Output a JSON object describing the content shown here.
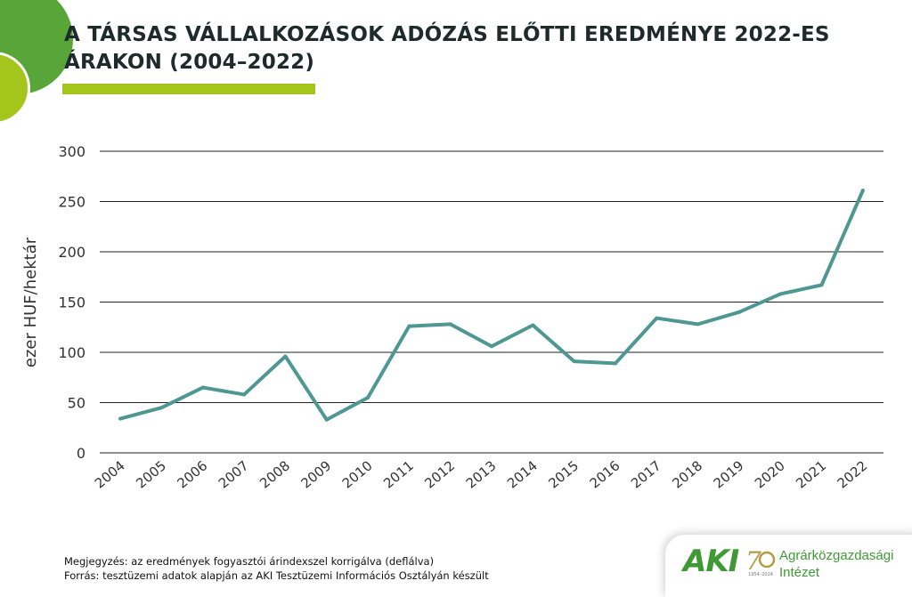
{
  "header": {
    "title_line1": "A TÁRSAS VÁLLALKOZÁSOK ADÓZÁS ELŐTTI EREDMÉNYE 2022-ES",
    "title_line2": "ÁRAKON (2004–2022)"
  },
  "chart_data": {
    "type": "line",
    "ylabel": "ezer HUF/hektár",
    "xlabel": "",
    "ylim": [
      0,
      300
    ],
    "yticks": [
      0,
      50,
      100,
      150,
      200,
      250,
      300
    ],
    "grid": true,
    "categories": [
      "2004",
      "2005",
      "2006",
      "2007",
      "2008",
      "2009",
      "2010",
      "2011",
      "2012",
      "2013",
      "2014",
      "2015",
      "2016",
      "2017",
      "2018",
      "2019",
      "2020",
      "2021",
      "2022"
    ],
    "series": [
      {
        "values": [
          34,
          45,
          65,
          58,
          96,
          33,
          55,
          126,
          128,
          106,
          127,
          91,
          89,
          134,
          128,
          140,
          158,
          167,
          261
        ],
        "color": "#4e9793"
      }
    ],
    "colors": {
      "grid": "#222222",
      "axis_text": "#333333"
    }
  },
  "footer": {
    "note": "Megjegyzés: az eredmények fogyasztói árindexszel korrigálva (deflálva)",
    "source": "Forrás: tesztüzemi adatok alapján az AKI Tesztüzemi Információs Osztályán készült"
  },
  "logo": {
    "short": "AKI",
    "years": "1954–2024",
    "name_line1": "Agrárközgazdasági",
    "name_line2": "Intézet",
    "color": "#3f9a35"
  }
}
